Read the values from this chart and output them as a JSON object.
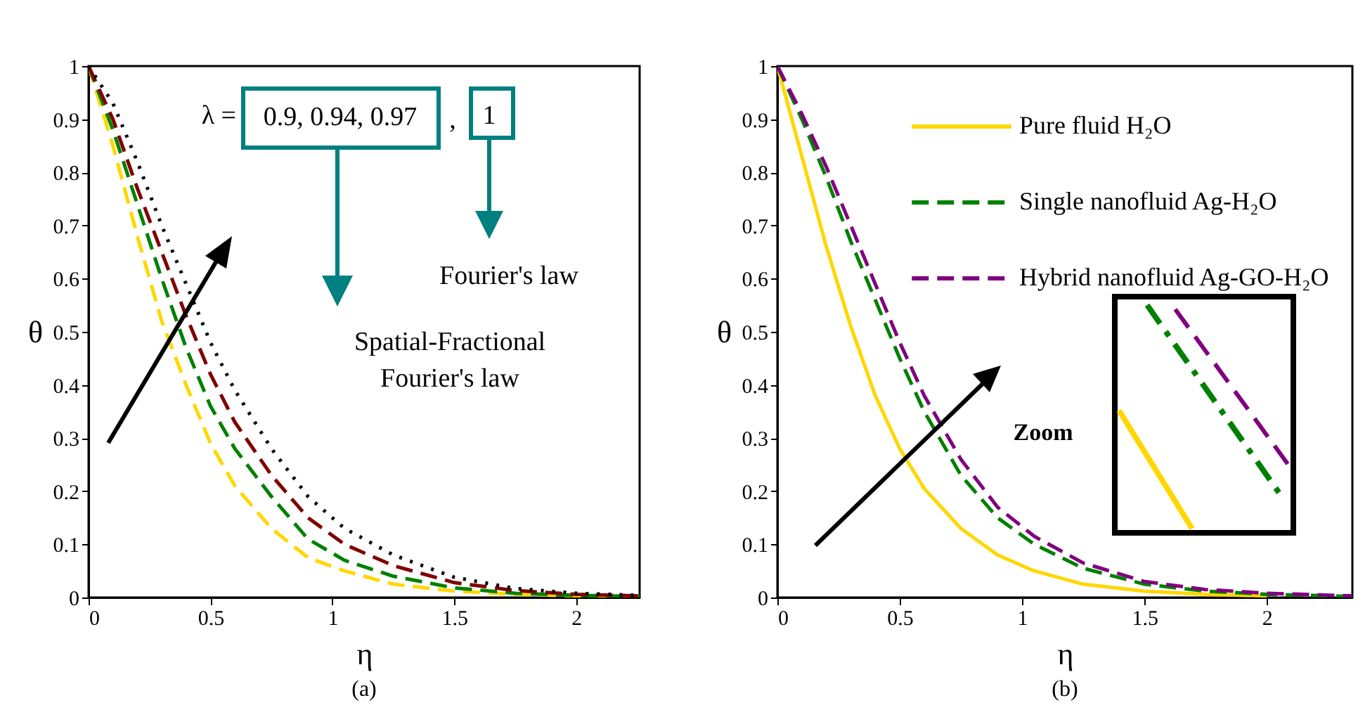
{
  "chart_data": [
    {
      "type": "line",
      "title": "(a)",
      "xlabel": "η",
      "ylabel": "θ",
      "xlim": [
        0,
        2.26
      ],
      "ylim": [
        0,
        1
      ],
      "xticks": [
        0,
        0.5,
        1,
        1.5,
        2
      ],
      "yticks": [
        0,
        0.1,
        0.2,
        0.3,
        0.4,
        0.5,
        0.6,
        0.7,
        0.8,
        0.9,
        1
      ],
      "grid": false,
      "legend": false,
      "annotations": [
        "λ =",
        "0.9, 0.94, 0.97",
        ",",
        "1",
        "Fourier's law",
        "Spatial-Fractional\nFourier's law"
      ],
      "x": [
        0,
        0.1,
        0.2,
        0.3,
        0.4,
        0.5,
        0.6,
        0.75,
        0.9,
        1.05,
        1.25,
        1.5,
        1.75,
        2,
        2.26
      ],
      "series": [
        {
          "color": "#ffd700",
          "line_style": "dashed",
          "values": [
            1,
            0.85,
            0.68,
            0.52,
            0.4,
            0.29,
            0.21,
            0.13,
            0.075,
            0.05,
            0.025,
            0.012,
            0.006,
            0.003,
            0.001
          ]
        },
        {
          "color": "#008000",
          "line_style": "dashed",
          "values": [
            1,
            0.88,
            0.74,
            0.6,
            0.47,
            0.36,
            0.28,
            0.19,
            0.11,
            0.07,
            0.04,
            0.018,
            0.008,
            0.004,
            0.002
          ]
        },
        {
          "color": "#800000",
          "line_style": "dashed",
          "values": [
            1,
            0.9,
            0.77,
            0.65,
            0.53,
            0.42,
            0.33,
            0.23,
            0.15,
            0.1,
            0.06,
            0.028,
            0.013,
            0.006,
            0.003
          ]
        },
        {
          "color": "#000000",
          "line_style": "dotted",
          "values": [
            1,
            0.93,
            0.82,
            0.7,
            0.59,
            0.48,
            0.39,
            0.28,
            0.19,
            0.13,
            0.08,
            0.038,
            0.017,
            0.008,
            0.004
          ]
        }
      ]
    },
    {
      "type": "line",
      "title": "(b)",
      "xlabel": "η",
      "ylabel": "θ",
      "xlim": [
        0,
        2.35
      ],
      "ylim": [
        0,
        1
      ],
      "xticks": [
        0,
        0.5,
        1,
        1.5,
        2
      ],
      "yticks": [
        0,
        0.1,
        0.2,
        0.3,
        0.4,
        0.5,
        0.6,
        0.7,
        0.8,
        0.9,
        1
      ],
      "grid": false,
      "legend": "top right",
      "annotations": [
        "Zoom"
      ],
      "x": [
        0,
        0.1,
        0.2,
        0.3,
        0.4,
        0.5,
        0.6,
        0.75,
        0.9,
        1.05,
        1.25,
        1.5,
        1.75,
        2,
        2.35
      ],
      "series": [
        {
          "name": "Pure fluid   H₂O",
          "color": "#ffd700",
          "line_style": "solid",
          "values": [
            1,
            0.83,
            0.66,
            0.51,
            0.38,
            0.28,
            0.205,
            0.13,
            0.08,
            0.05,
            0.025,
            0.012,
            0.006,
            0.003,
            null
          ]
        },
        {
          "name": "Single nanofluid   Ag-H₂O",
          "color": "#008000",
          "line_style": "dashed",
          "values": [
            1,
            0.9,
            0.79,
            0.67,
            0.56,
            0.45,
            0.35,
            0.23,
            0.15,
            0.1,
            0.055,
            0.025,
            0.012,
            0.006,
            0.002
          ]
        },
        {
          "name": "Hybrid nanofluid   Ag-GO-H₂O",
          "color": "#800080",
          "line_style": "dashed",
          "values": [
            1,
            0.91,
            0.81,
            0.7,
            0.59,
            0.48,
            0.38,
            0.26,
            0.17,
            0.115,
            0.065,
            0.03,
            0.015,
            0.008,
            0.003
          ]
        }
      ]
    }
  ]
}
